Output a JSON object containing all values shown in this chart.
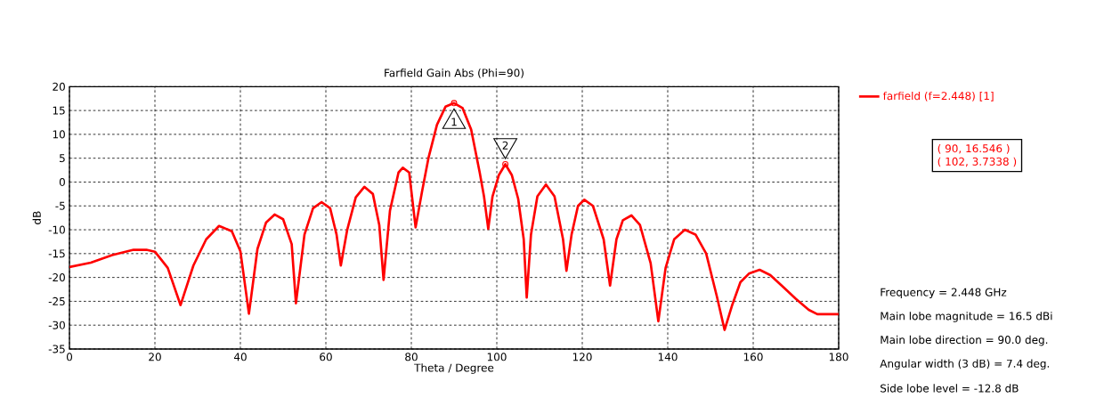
{
  "chart_data": {
    "type": "line",
    "title": "Farfield Gain Abs (Phi=90)",
    "xlabel": "Theta / Degree",
    "ylabel": "dB",
    "xlim": [
      0,
      180
    ],
    "xticks": [
      0,
      20,
      40,
      60,
      80,
      100,
      120,
      140,
      160,
      180
    ],
    "ylim": [
      -35,
      20
    ],
    "yticks": [
      -35,
      -30,
      -25,
      -20,
      -15,
      -10,
      -5,
      0,
      5,
      10,
      15,
      20
    ],
    "grid": true,
    "legend": "top right",
    "line_style": "solid",
    "series": [
      {
        "name": "farfield (f=2.448) [1]",
        "color": "#ff0000",
        "x": [
          0,
          5,
          10,
          15,
          18,
          20,
          23,
          26,
          29,
          32,
          35,
          38,
          40,
          42,
          44,
          46,
          48,
          50,
          52,
          53,
          55,
          57,
          59,
          61,
          62.5,
          63.5,
          65,
          67,
          69,
          71,
          72.5,
          73.5,
          75,
          77,
          78,
          79.5,
          81,
          82.5,
          84,
          86,
          88,
          90,
          92,
          94,
          96,
          97,
          98,
          99,
          100.5,
          102,
          103.5,
          105,
          106.3,
          107,
          108,
          109.5,
          111.5,
          113.5,
          115.5,
          116.3,
          117.5,
          119,
          120.5,
          122.5,
          125,
          126.5,
          128,
          129.5,
          131.5,
          133.5,
          136,
          137.8,
          139.5,
          141.5,
          144,
          146.5,
          149,
          151.5,
          153.3,
          155,
          157,
          159,
          161.5,
          164,
          167,
          170,
          173,
          175,
          180
        ],
        "values": [
          -17.8,
          -16.9,
          -15.3,
          -14.2,
          -14.2,
          -14.6,
          -18,
          -25.8,
          -17.5,
          -12,
          -9.2,
          -10.3,
          -14.5,
          -27.6,
          -14,
          -8.5,
          -6.8,
          -7.8,
          -13,
          -25.4,
          -11,
          -5.5,
          -4.2,
          -5.5,
          -11,
          -17.5,
          -10,
          -3.2,
          -1,
          -2.5,
          -9,
          -20.5,
          -6,
          2,
          3,
          2,
          -9.5,
          -2,
          5,
          12,
          15.8,
          16.546,
          15.5,
          11,
          2,
          -3,
          -9.8,
          -3,
          1.5,
          3.7338,
          1.5,
          -3.5,
          -12,
          -24.2,
          -11,
          -3,
          -0.5,
          -3,
          -12,
          -18.6,
          -11,
          -5,
          -3.7,
          -5,
          -12,
          -21.7,
          -12,
          -8,
          -7,
          -9,
          -17,
          -29.2,
          -18,
          -12,
          -10,
          -11,
          -15,
          -24,
          -31,
          -26,
          -21,
          -19.2,
          -18.4,
          -19.5,
          -22,
          -24.5,
          -26.8,
          -27.7,
          -27.7
        ]
      }
    ],
    "annotations": [
      {
        "text": "1",
        "x": 90,
        "y": 16.546
      },
      {
        "text": "2",
        "x": 102,
        "y": 3.7338
      },
      "( 90, 16.546 )",
      "( 102, 3.7338 )",
      "Frequency = 2.448 GHz",
      "Main lobe magnitude = 16.5 dBi",
      "Main lobe direction = 90.0 deg.",
      "Angular width (3 dB) = 7.4 deg.",
      "Side lobe level = -12.8 dB"
    ]
  }
}
